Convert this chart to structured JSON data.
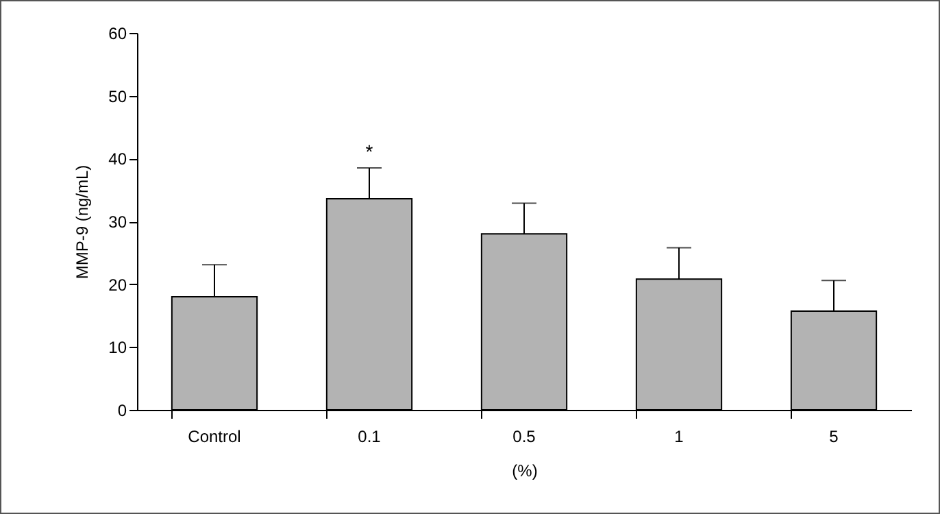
{
  "chart_data": {
    "type": "bar",
    "xlabel": "(%)",
    "ylabel": "MMP-9 (ng/mL)",
    "categories": [
      "Control",
      "0.1",
      "0.5",
      "1",
      "5"
    ],
    "values": [
      18,
      33.6,
      28,
      20.8,
      15.7
    ],
    "errors": [
      [
        18,
        23.1
      ],
      [
        33.6,
        38.5
      ],
      [
        28,
        32.9
      ],
      [
        20.8,
        25.8
      ],
      [
        15.7,
        20.6
      ]
    ],
    "color": "#b3b3b3",
    "ylim": [
      0,
      60
    ],
    "yticks": [
      0,
      10,
      20,
      30,
      40,
      50,
      60
    ],
    "grid": false,
    "annotations": [
      {
        "text": "*",
        "x": "0.1",
        "y": 38.5
      }
    ]
  }
}
